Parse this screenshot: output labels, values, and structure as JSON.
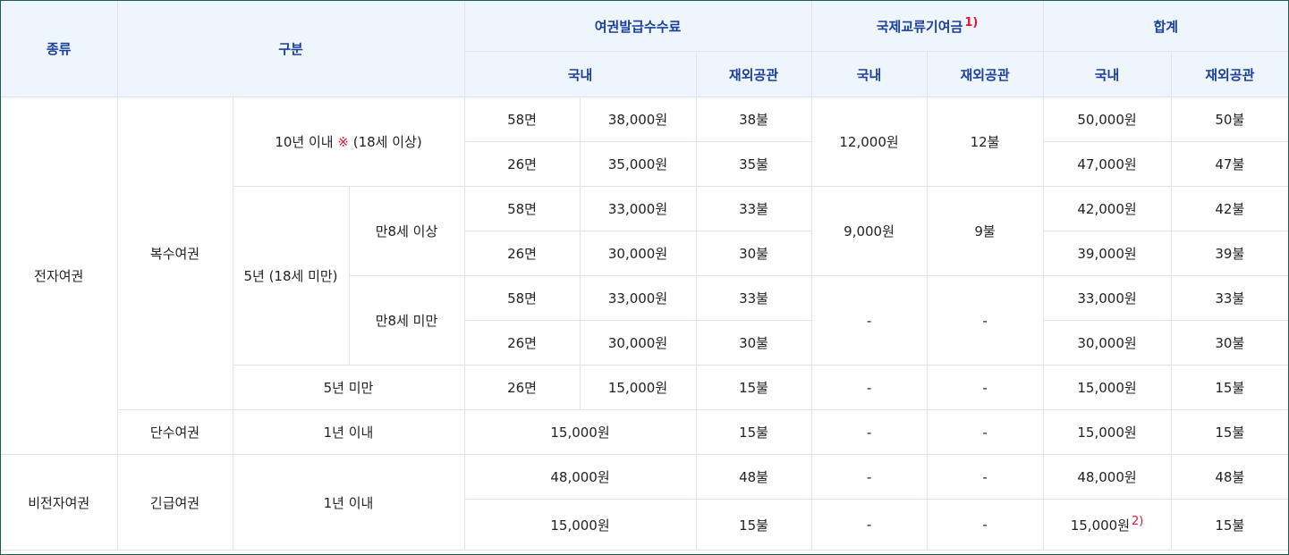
{
  "header": {
    "type": "종류",
    "category": "구분",
    "issue_fee": "여권발급수수료",
    "intl_fund": "국제교류기여금",
    "intl_fund_note": "1)",
    "total": "합계",
    "domestic": "국내",
    "overseas": "재외공관"
  },
  "colors": {
    "header_bg": "#eef5fc",
    "header_text": "#1b3f9c",
    "accent_red": "#e0182f",
    "frame": "#1a5f4a"
  },
  "rows": {
    "electronic": "전자여권",
    "multi": "복수여권",
    "ten_year": "10년 이내",
    "ten_year_mark": "※",
    "ten_year_age": "(18세 이상)",
    "five_year": "5년 (18세 미만)",
    "over8": "만8세 이상",
    "under8": "만8세 미만",
    "under5": "5년 미만",
    "single": "단수여권",
    "within1": "1년 이내",
    "non_electronic": "비전자여권",
    "emergency": "긴급여권",
    "emergency_within1": "1년 이내",
    "note2": "2)"
  },
  "cells": {
    "r1": {
      "pages": "58면",
      "dom_fee": "38,000원",
      "ovs_fee": "38불",
      "fund_dom": "12,000원",
      "fund_ovs": "12불",
      "tot_dom": "50,000원",
      "tot_ovs": "50불"
    },
    "r2": {
      "pages": "26면",
      "dom_fee": "35,000원",
      "ovs_fee": "35불",
      "tot_dom": "47,000원",
      "tot_ovs": "47불"
    },
    "r3": {
      "pages": "58면",
      "dom_fee": "33,000원",
      "ovs_fee": "33불",
      "fund_dom": "9,000원",
      "fund_ovs": "9불",
      "tot_dom": "42,000원",
      "tot_ovs": "42불"
    },
    "r4": {
      "pages": "26면",
      "dom_fee": "30,000원",
      "ovs_fee": "30불",
      "tot_dom": "39,000원",
      "tot_ovs": "39불"
    },
    "r5": {
      "pages": "58면",
      "dom_fee": "33,000원",
      "ovs_fee": "33불",
      "fund_dom": "-",
      "fund_ovs": "-",
      "tot_dom": "33,000원",
      "tot_ovs": "33불"
    },
    "r6": {
      "pages": "26면",
      "dom_fee": "30,000원",
      "ovs_fee": "30불",
      "tot_dom": "30,000원",
      "tot_ovs": "30불"
    },
    "r7": {
      "pages": "26면",
      "dom_fee": "15,000원",
      "ovs_fee": "15불",
      "fund_dom": "-",
      "fund_ovs": "-",
      "tot_dom": "15,000원",
      "tot_ovs": "15불"
    },
    "r8": {
      "dom_fee": "15,000원",
      "ovs_fee": "15불",
      "fund_dom": "-",
      "fund_ovs": "-",
      "tot_dom": "15,000원",
      "tot_ovs": "15불"
    },
    "r9": {
      "dom_fee": "48,000원",
      "ovs_fee": "48불",
      "fund_dom": "-",
      "fund_ovs": "-",
      "tot_dom": "48,000원",
      "tot_ovs": "48불"
    },
    "r10": {
      "dom_fee": "15,000원",
      "ovs_fee": "15불",
      "fund_dom": "-",
      "fund_ovs": "-",
      "tot_dom": "15,000원",
      "tot_ovs": "15불"
    }
  }
}
